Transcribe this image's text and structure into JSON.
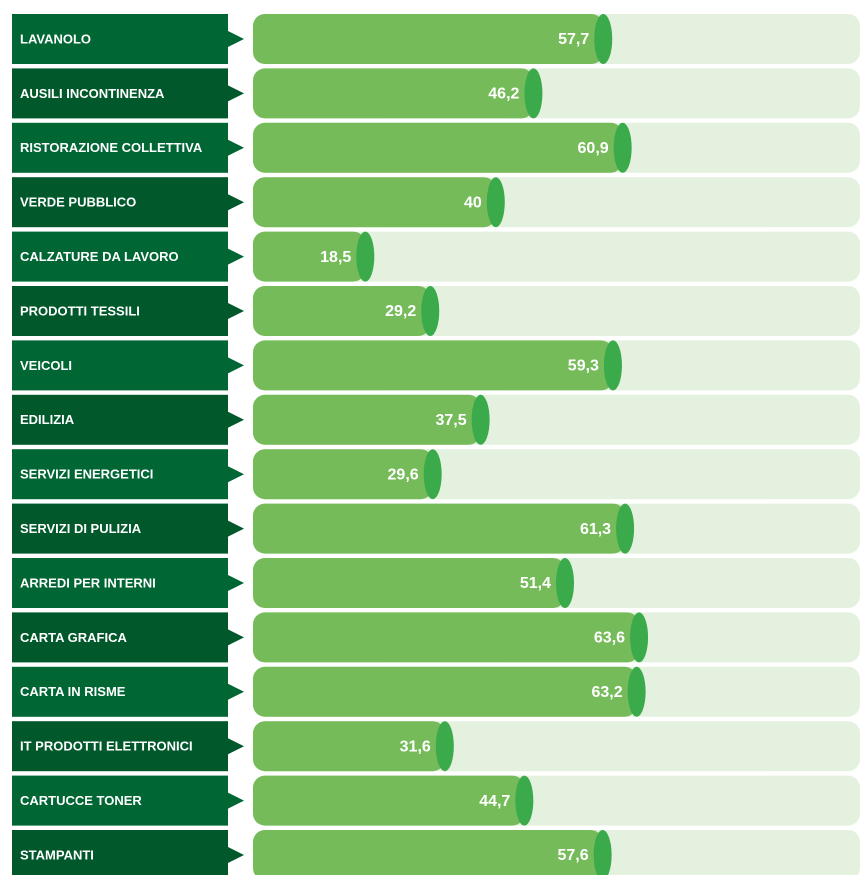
{
  "chart_data": {
    "type": "bar",
    "categories": [
      "LAVANOLO",
      "AUSILI INCONTINENZA",
      "RISTORAZIONE COLLETTIVA",
      "VERDE PUBBLICO",
      "CALZATURE DA LAVORO",
      "PRODOTTI TESSILI",
      "VEICOLI",
      "EDILIZIA",
      "SERVIZI ENERGETICI",
      "SERVIZI DI PULIZIA",
      "ARREDI PER INTERNI",
      "CARTA GRAFICA",
      "CARTA IN RISME",
      "IT PRODOTTI ELETTRONICI",
      "CARTUCCE TONER",
      "STAMPANTI"
    ],
    "values": [
      57.7,
      46.2,
      60.9,
      40,
      18.5,
      29.2,
      59.3,
      37.5,
      29.6,
      61.3,
      51.4,
      63.6,
      63.2,
      31.6,
      44.7,
      57.6
    ],
    "value_labels": [
      "57,7",
      "46,2",
      "60,9",
      "40",
      "18,5",
      "29,2",
      "59,3",
      "37,5",
      "29,6",
      "61,3",
      "51,4",
      "63,6",
      "63,2",
      "31,6",
      "44,7",
      "57,6"
    ],
    "color": "#76bb5a",
    "xlim": [
      0,
      100
    ]
  }
}
